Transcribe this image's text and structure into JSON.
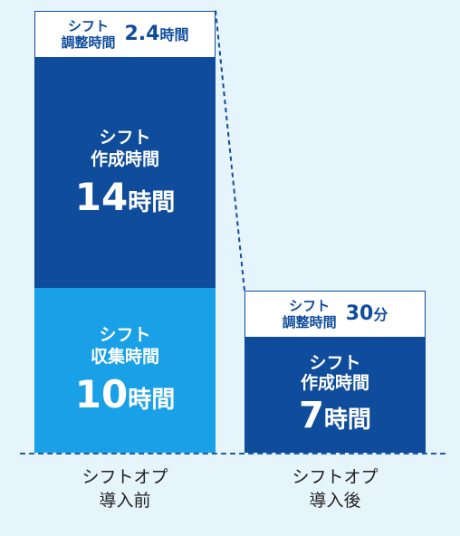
{
  "chart_data": {
    "type": "bar",
    "stacked": true,
    "unit": "時間",
    "categories": [
      "シフトオプ\n導入前",
      "シフトオプ\n導入後"
    ],
    "category_lines": [
      [
        "シフトオプ",
        "導入前"
      ],
      [
        "シフトオプ",
        "導入後"
      ]
    ],
    "series": [
      {
        "name": "シフト収集時間",
        "label_lines": [
          "シフト",
          "収集時間"
        ],
        "value_labels": [
          "10時間",
          ""
        ],
        "values": [
          10,
          0
        ],
        "color": "#1AA0E6"
      },
      {
        "name": "シフト作成時間",
        "label_lines": [
          "シフト",
          "作成時間"
        ],
        "value_labels": [
          "14時間",
          "7時間"
        ],
        "values": [
          14,
          7
        ],
        "color": "#0F4C9C"
      },
      {
        "name": "シフト調整時間",
        "label_lines": [
          "シフト",
          "調整時間"
        ],
        "value_labels": [
          "2.4時間",
          "30分"
        ],
        "values": [
          2.4,
          0.5
        ],
        "color": "#FFFFFF"
      }
    ],
    "value_label_parts": {
      "before": {
        "adjust": [
          "2.4",
          "時間"
        ],
        "create": [
          "14",
          "時間"
        ],
        "collect": [
          "10",
          "時間"
        ]
      },
      "after": {
        "adjust": [
          "30",
          "分"
        ],
        "create": [
          "7",
          "時間"
        ]
      }
    },
    "ylim": [
      0,
      26.4
    ],
    "grid": false,
    "legend": "none"
  }
}
